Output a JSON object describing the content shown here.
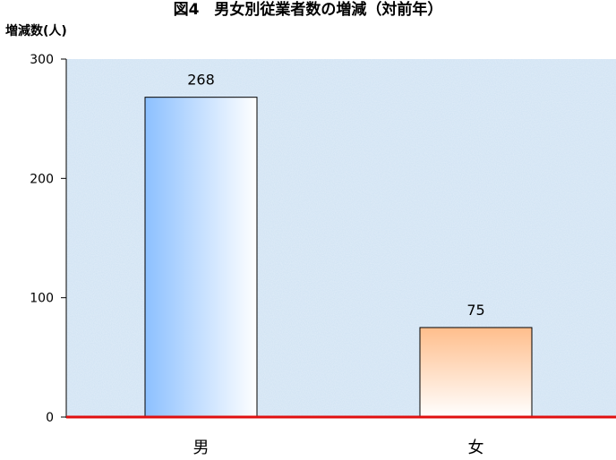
{
  "chart_data": {
    "type": "bar",
    "title": "図4　男女別従業者数の増減（対前年）",
    "ylabel": "増減数(人)",
    "xlabel": "",
    "categories": [
      "男",
      "女"
    ],
    "values": [
      268,
      75
    ],
    "ylim": [
      0,
      300
    ],
    "yticks": [
      0,
      100,
      200,
      300
    ],
    "bar_colors": [
      "#8cc0ff",
      "#ffbe8c"
    ],
    "baseline_color": "#e01010",
    "background_color": "#cfe2f3",
    "grid": false
  }
}
